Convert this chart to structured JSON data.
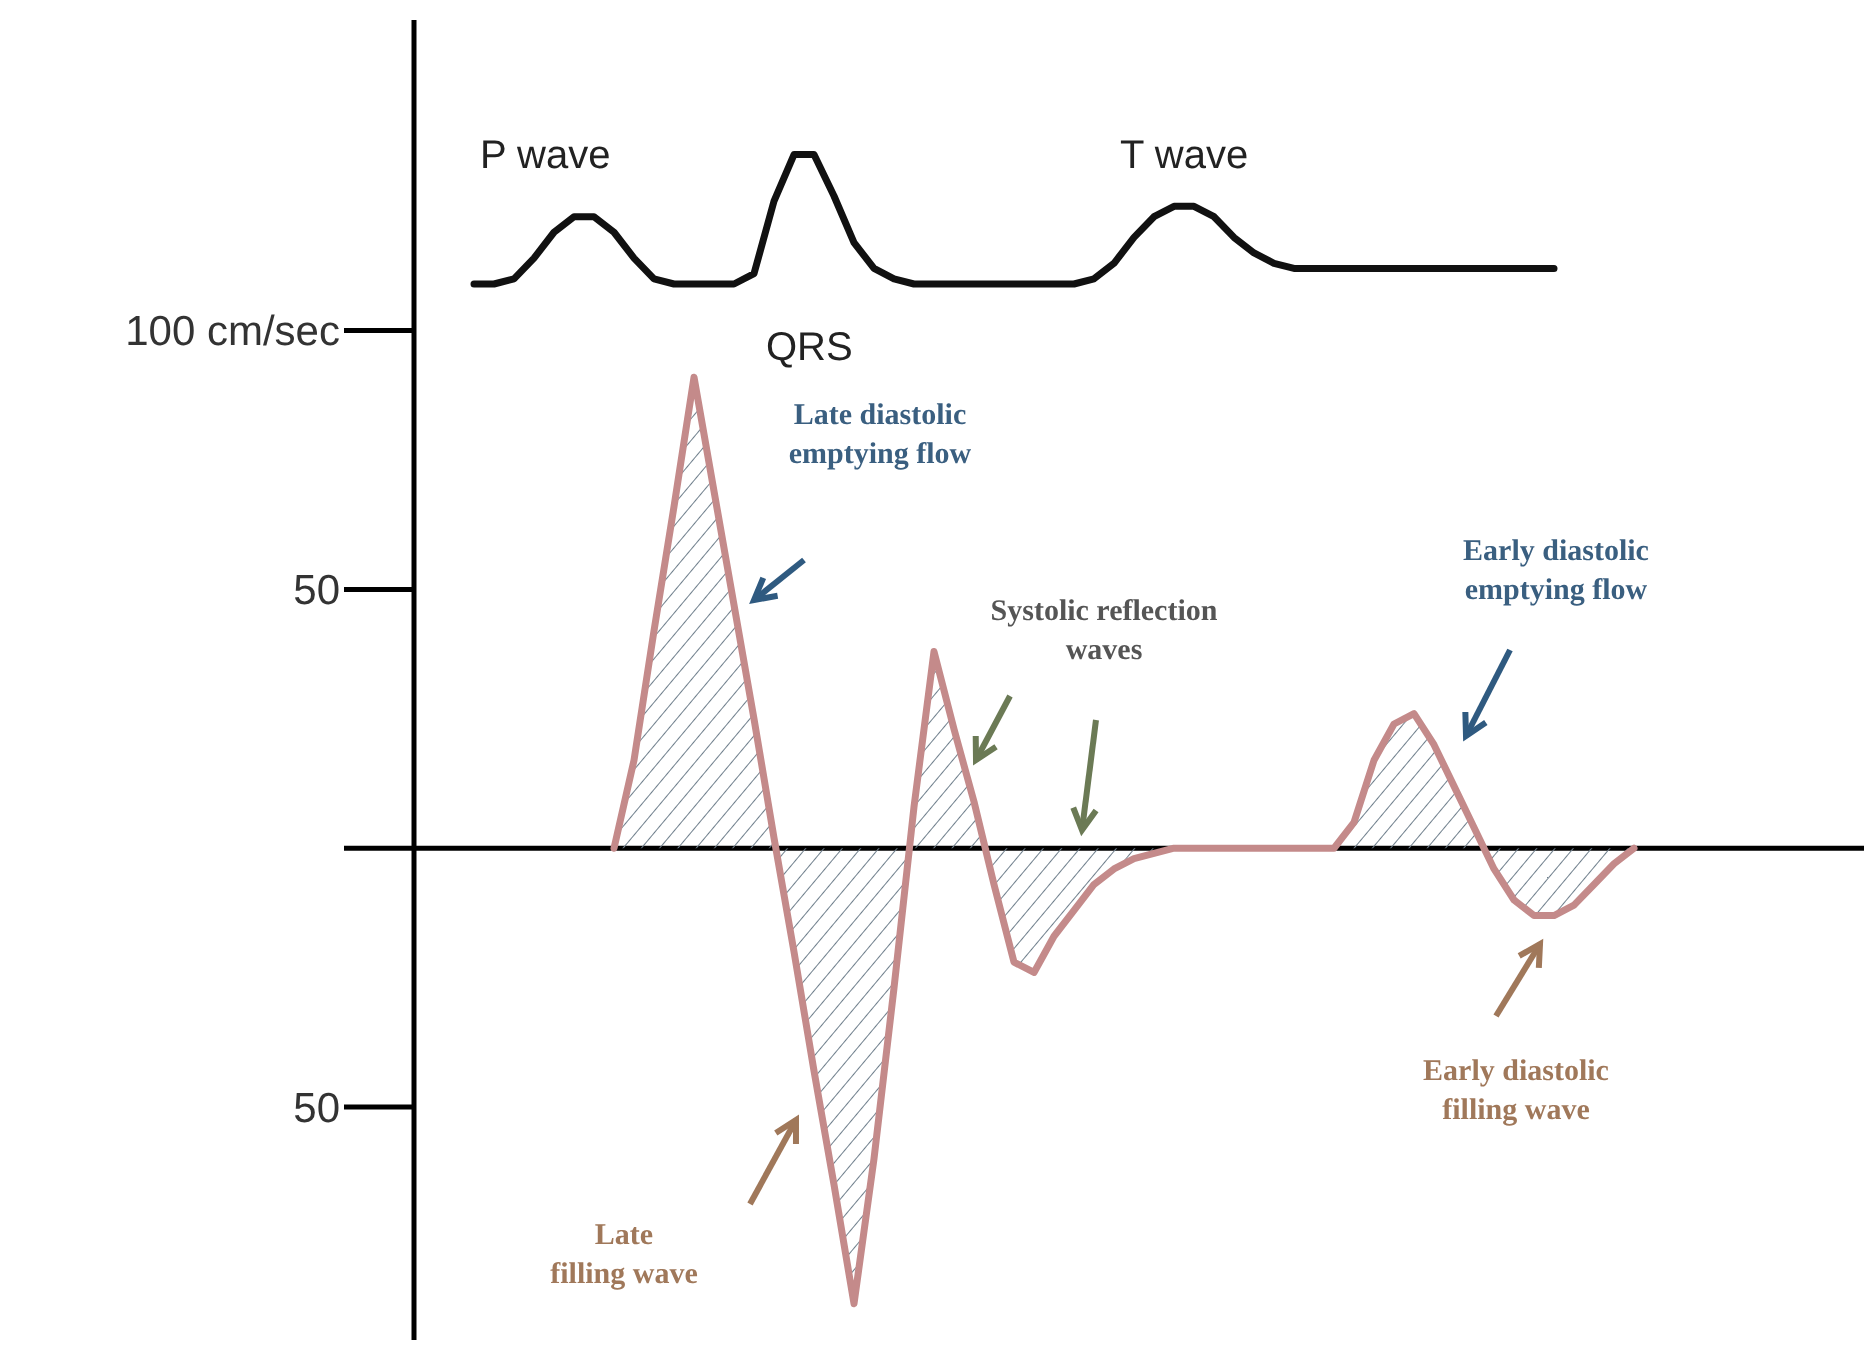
{
  "chart_data": {
    "type": "line",
    "categories": [
      null,
      null,
      null,
      null,
      null,
      null,
      null,
      null,
      null,
      null,
      null,
      null,
      null,
      null,
      null,
      null,
      null,
      null,
      null,
      null,
      null,
      null,
      null,
      null,
      null,
      null,
      null,
      null,
      null,
      null,
      null,
      null,
      null,
      null,
      null,
      null,
      null,
      null,
      null,
      null,
      null,
      null,
      null,
      null,
      null,
      null,
      null,
      null,
      null,
      null,
      null,
      null,
      null,
      null,
      null,
      null,
      null,
      null,
      null,
      null,
      null,
      null,
      null,
      null,
      null,
      null,
      null,
      null,
      null,
      null,
      null,
      null,
      null
    ],
    "series": [
      {
        "color": "#111111",
        "values": [
          null,
          null,
          null,
          109,
          109,
          110,
          114,
          119,
          122,
          122,
          119,
          114,
          110,
          109,
          109,
          109,
          109,
          111,
          125,
          134,
          134,
          126,
          117,
          112,
          110,
          109,
          109,
          109,
          109,
          109,
          109,
          109,
          109,
          109,
          110,
          113,
          118,
          122,
          124,
          124,
          122,
          118,
          115,
          113,
          112,
          112,
          112,
          112,
          112,
          112,
          112,
          112,
          112,
          112,
          112,
          112,
          112,
          112,
          null,
          null,
          null,
          null,
          null,
          null,
          null,
          null,
          null,
          null,
          null,
          null,
          null,
          null,
          null
        ]
      },
      {
        "type": "area",
        "color": "#c48a8a",
        "values": [
          null,
          null,
          null,
          null,
          null,
          null,
          null,
          null,
          null,
          null,
          0,
          17,
          42,
          66,
          91,
          69,
          47,
          25,
          2,
          -20,
          -43,
          -65,
          -88,
          -60,
          -27,
          8,
          38,
          23,
          9,
          -7,
          -22,
          -24,
          -17,
          -12,
          -7,
          -4,
          -2,
          -1,
          0,
          0,
          0,
          0,
          0,
          0,
          0,
          0,
          0,
          5,
          17,
          24,
          26,
          20,
          12,
          4,
          -4,
          -10,
          -13,
          -13,
          -11,
          -7,
          -3,
          0,
          null,
          null,
          null,
          null,
          null,
          null,
          null,
          null,
          null,
          null,
          null
        ]
      }
    ],
    "ylim": [
      -95,
      160
    ],
    "yticks": [
      {
        "value": 100,
        "label": "100 cm/sec"
      },
      50,
      {
        "value": 0,
        "label": null
      },
      {
        "value": -50,
        "label": "50"
      }
    ],
    "tick_labels": "y",
    "annotations": [
      "P wave",
      "QRS",
      "T wave",
      "Late diastolic\nemptying flow",
      "Systolic reflection\nwaves",
      "Early diastolic\nemptying flow",
      "Late\nfilling wave",
      "Early diastolic\nfilling wave"
    ]
  }
}
